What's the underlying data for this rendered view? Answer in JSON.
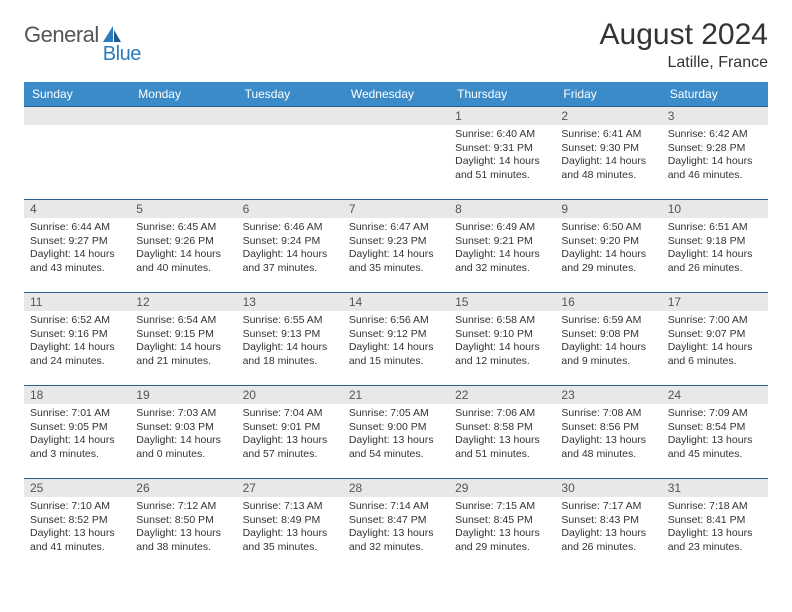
{
  "brand": {
    "part1": "General",
    "part2": "Blue"
  },
  "title": "August 2024",
  "location": "Latille, France",
  "colors": {
    "header_bg": "#3b8bc9",
    "header_fg": "#ffffff",
    "row_border": "#2b5f8f",
    "daynum_bg": "#e8e8e8",
    "text": "#333333",
    "logo_gray": "#555555",
    "logo_blue": "#2b7bbd"
  },
  "weekdays": [
    "Sunday",
    "Monday",
    "Tuesday",
    "Wednesday",
    "Thursday",
    "Friday",
    "Saturday"
  ],
  "grid": [
    [
      {
        "n": "",
        "sr": "",
        "ss": "",
        "dl": ""
      },
      {
        "n": "",
        "sr": "",
        "ss": "",
        "dl": ""
      },
      {
        "n": "",
        "sr": "",
        "ss": "",
        "dl": ""
      },
      {
        "n": "",
        "sr": "",
        "ss": "",
        "dl": ""
      },
      {
        "n": "1",
        "sr": "6:40 AM",
        "ss": "9:31 PM",
        "dl": "14 hours and 51 minutes."
      },
      {
        "n": "2",
        "sr": "6:41 AM",
        "ss": "9:30 PM",
        "dl": "14 hours and 48 minutes."
      },
      {
        "n": "3",
        "sr": "6:42 AM",
        "ss": "9:28 PM",
        "dl": "14 hours and 46 minutes."
      }
    ],
    [
      {
        "n": "4",
        "sr": "6:44 AM",
        "ss": "9:27 PM",
        "dl": "14 hours and 43 minutes."
      },
      {
        "n": "5",
        "sr": "6:45 AM",
        "ss": "9:26 PM",
        "dl": "14 hours and 40 minutes."
      },
      {
        "n": "6",
        "sr": "6:46 AM",
        "ss": "9:24 PM",
        "dl": "14 hours and 37 minutes."
      },
      {
        "n": "7",
        "sr": "6:47 AM",
        "ss": "9:23 PM",
        "dl": "14 hours and 35 minutes."
      },
      {
        "n": "8",
        "sr": "6:49 AM",
        "ss": "9:21 PM",
        "dl": "14 hours and 32 minutes."
      },
      {
        "n": "9",
        "sr": "6:50 AM",
        "ss": "9:20 PM",
        "dl": "14 hours and 29 minutes."
      },
      {
        "n": "10",
        "sr": "6:51 AM",
        "ss": "9:18 PM",
        "dl": "14 hours and 26 minutes."
      }
    ],
    [
      {
        "n": "11",
        "sr": "6:52 AM",
        "ss": "9:16 PM",
        "dl": "14 hours and 24 minutes."
      },
      {
        "n": "12",
        "sr": "6:54 AM",
        "ss": "9:15 PM",
        "dl": "14 hours and 21 minutes."
      },
      {
        "n": "13",
        "sr": "6:55 AM",
        "ss": "9:13 PM",
        "dl": "14 hours and 18 minutes."
      },
      {
        "n": "14",
        "sr": "6:56 AM",
        "ss": "9:12 PM",
        "dl": "14 hours and 15 minutes."
      },
      {
        "n": "15",
        "sr": "6:58 AM",
        "ss": "9:10 PM",
        "dl": "14 hours and 12 minutes."
      },
      {
        "n": "16",
        "sr": "6:59 AM",
        "ss": "9:08 PM",
        "dl": "14 hours and 9 minutes."
      },
      {
        "n": "17",
        "sr": "7:00 AM",
        "ss": "9:07 PM",
        "dl": "14 hours and 6 minutes."
      }
    ],
    [
      {
        "n": "18",
        "sr": "7:01 AM",
        "ss": "9:05 PM",
        "dl": "14 hours and 3 minutes."
      },
      {
        "n": "19",
        "sr": "7:03 AM",
        "ss": "9:03 PM",
        "dl": "14 hours and 0 minutes."
      },
      {
        "n": "20",
        "sr": "7:04 AM",
        "ss": "9:01 PM",
        "dl": "13 hours and 57 minutes."
      },
      {
        "n": "21",
        "sr": "7:05 AM",
        "ss": "9:00 PM",
        "dl": "13 hours and 54 minutes."
      },
      {
        "n": "22",
        "sr": "7:06 AM",
        "ss": "8:58 PM",
        "dl": "13 hours and 51 minutes."
      },
      {
        "n": "23",
        "sr": "7:08 AM",
        "ss": "8:56 PM",
        "dl": "13 hours and 48 minutes."
      },
      {
        "n": "24",
        "sr": "7:09 AM",
        "ss": "8:54 PM",
        "dl": "13 hours and 45 minutes."
      }
    ],
    [
      {
        "n": "25",
        "sr": "7:10 AM",
        "ss": "8:52 PM",
        "dl": "13 hours and 41 minutes."
      },
      {
        "n": "26",
        "sr": "7:12 AM",
        "ss": "8:50 PM",
        "dl": "13 hours and 38 minutes."
      },
      {
        "n": "27",
        "sr": "7:13 AM",
        "ss": "8:49 PM",
        "dl": "13 hours and 35 minutes."
      },
      {
        "n": "28",
        "sr": "7:14 AM",
        "ss": "8:47 PM",
        "dl": "13 hours and 32 minutes."
      },
      {
        "n": "29",
        "sr": "7:15 AM",
        "ss": "8:45 PM",
        "dl": "13 hours and 29 minutes."
      },
      {
        "n": "30",
        "sr": "7:17 AM",
        "ss": "8:43 PM",
        "dl": "13 hours and 26 minutes."
      },
      {
        "n": "31",
        "sr": "7:18 AM",
        "ss": "8:41 PM",
        "dl": "13 hours and 23 minutes."
      }
    ]
  ],
  "labels": {
    "sunrise": "Sunrise:",
    "sunset": "Sunset:",
    "daylight": "Daylight:"
  }
}
